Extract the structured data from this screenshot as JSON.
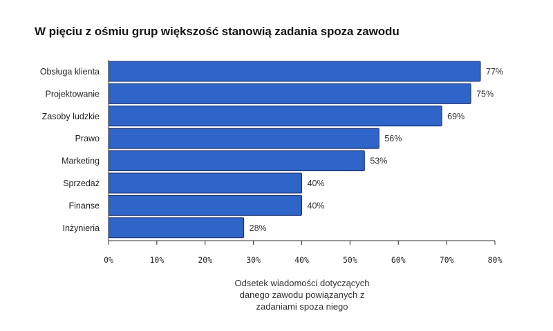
{
  "chart_data": {
    "type": "bar",
    "orientation": "horizontal",
    "title": "W pięciu z ośmiu grup większość stanowią zadania spoza zawodu",
    "categories": [
      "Obsługa klienta",
      "Projektowanie",
      "Zasoby ludzkie",
      "Prawo",
      "Marketing",
      "Sprzedaż",
      "Finanse",
      "Inżynieria"
    ],
    "values": [
      77,
      75,
      69,
      56,
      53,
      40,
      40,
      28
    ],
    "value_labels": [
      "77%",
      "75%",
      "69%",
      "56%",
      "53%",
      "40%",
      "40%",
      "28%"
    ],
    "xlabel_lines": [
      "Odsetek wiadomości dotyczących",
      "danego zawodu powiązanych z",
      "zadaniami spoza niego"
    ],
    "ylabel": "",
    "xlim": [
      0,
      80
    ],
    "x_ticks": [
      0,
      10,
      20,
      30,
      40,
      50,
      60,
      70,
      80
    ],
    "x_tick_labels": [
      "0%",
      "10%",
      "20%",
      "30%",
      "40%",
      "50%",
      "60%",
      "70%",
      "80%"
    ],
    "grid": false,
    "legend": "none",
    "bar_color": "#2f64c8",
    "bar_stroke": "#1c2f6e"
  }
}
